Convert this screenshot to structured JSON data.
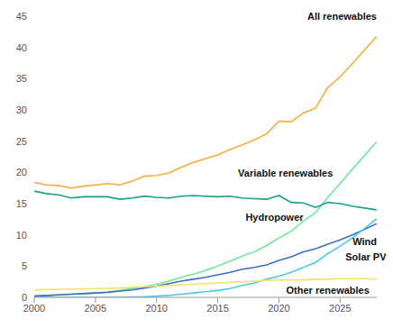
{
  "chart_data": {
    "type": "line",
    "x": [
      2000,
      2001,
      2002,
      2003,
      2004,
      2005,
      2006,
      2007,
      2008,
      2009,
      2010,
      2011,
      2012,
      2013,
      2014,
      2015,
      2016,
      2017,
      2018,
      2019,
      2020,
      2021,
      2022,
      2023,
      2024,
      2025,
      2026,
      2027,
      2028
    ],
    "xlim": [
      2000,
      2028
    ],
    "xticks": [
      2000,
      2005,
      2010,
      2015,
      2020,
      2025
    ],
    "ylim": [
      0,
      45
    ],
    "yticks": [
      0,
      5,
      10,
      15,
      20,
      25,
      30,
      35,
      40,
      45
    ],
    "grid": false,
    "series": [
      {
        "name": "All renewables",
        "color": "#f5ac3c",
        "values": [
          18.4,
          18.0,
          17.9,
          17.5,
          17.8,
          18.0,
          18.2,
          18.0,
          18.6,
          19.4,
          19.5,
          19.9,
          20.8,
          21.6,
          22.2,
          22.8,
          23.7,
          24.4,
          25.2,
          26.2,
          28.2,
          28.1,
          29.5,
          30.3,
          33.6,
          35.3,
          37.4,
          39.6,
          41.8
        ]
      },
      {
        "name": "Variable renewables",
        "color": "#6ee89c",
        "values": [
          0.2,
          0.3,
          0.4,
          0.5,
          0.6,
          0.7,
          0.9,
          1.1,
          1.4,
          1.7,
          2.1,
          2.6,
          3.2,
          3.7,
          4.3,
          5.0,
          5.8,
          6.6,
          7.3,
          8.3,
          9.5,
          10.6,
          12.2,
          13.6,
          16.0,
          18.2,
          20.5,
          22.7,
          24.9
        ]
      },
      {
        "name": "Hydropower",
        "color": "#1a9e8e",
        "values": [
          17.0,
          16.6,
          16.4,
          15.9,
          16.1,
          16.1,
          16.1,
          15.7,
          15.9,
          16.2,
          16.0,
          15.9,
          16.2,
          16.3,
          16.2,
          16.1,
          16.2,
          15.9,
          15.8,
          15.7,
          16.3,
          15.2,
          15.1,
          14.4,
          15.2,
          15.0,
          14.6,
          14.3,
          14.0
        ]
      },
      {
        "name": "Wind",
        "color": "#3a6fc4",
        "values": [
          0.2,
          0.3,
          0.4,
          0.5,
          0.6,
          0.7,
          0.8,
          1.0,
          1.2,
          1.5,
          1.8,
          2.2,
          2.6,
          2.9,
          3.2,
          3.6,
          4.0,
          4.5,
          4.8,
          5.2,
          5.9,
          6.5,
          7.3,
          7.8,
          8.5,
          9.2,
          10.0,
          10.9,
          11.8
        ]
      },
      {
        "name": "Solar PV",
        "color": "#4dc9e8",
        "values": [
          0,
          0,
          0,
          0,
          0,
          0,
          0,
          0,
          0.05,
          0.1,
          0.2,
          0.3,
          0.5,
          0.7,
          0.9,
          1.1,
          1.4,
          1.9,
          2.3,
          2.9,
          3.4,
          4.0,
          4.8,
          5.6,
          7.0,
          8.2,
          9.5,
          11.0,
          12.6
        ]
      },
      {
        "name": "Other renewables",
        "color": "#f2e36a",
        "values": [
          1.2,
          1.25,
          1.3,
          1.3,
          1.35,
          1.4,
          1.45,
          1.5,
          1.6,
          1.7,
          1.8,
          1.9,
          2.0,
          2.1,
          2.2,
          2.3,
          2.4,
          2.5,
          2.6,
          2.7,
          2.8,
          2.8,
          2.8,
          2.9,
          2.9,
          3.0,
          3.0,
          3.0,
          2.9
        ]
      }
    ]
  }
}
